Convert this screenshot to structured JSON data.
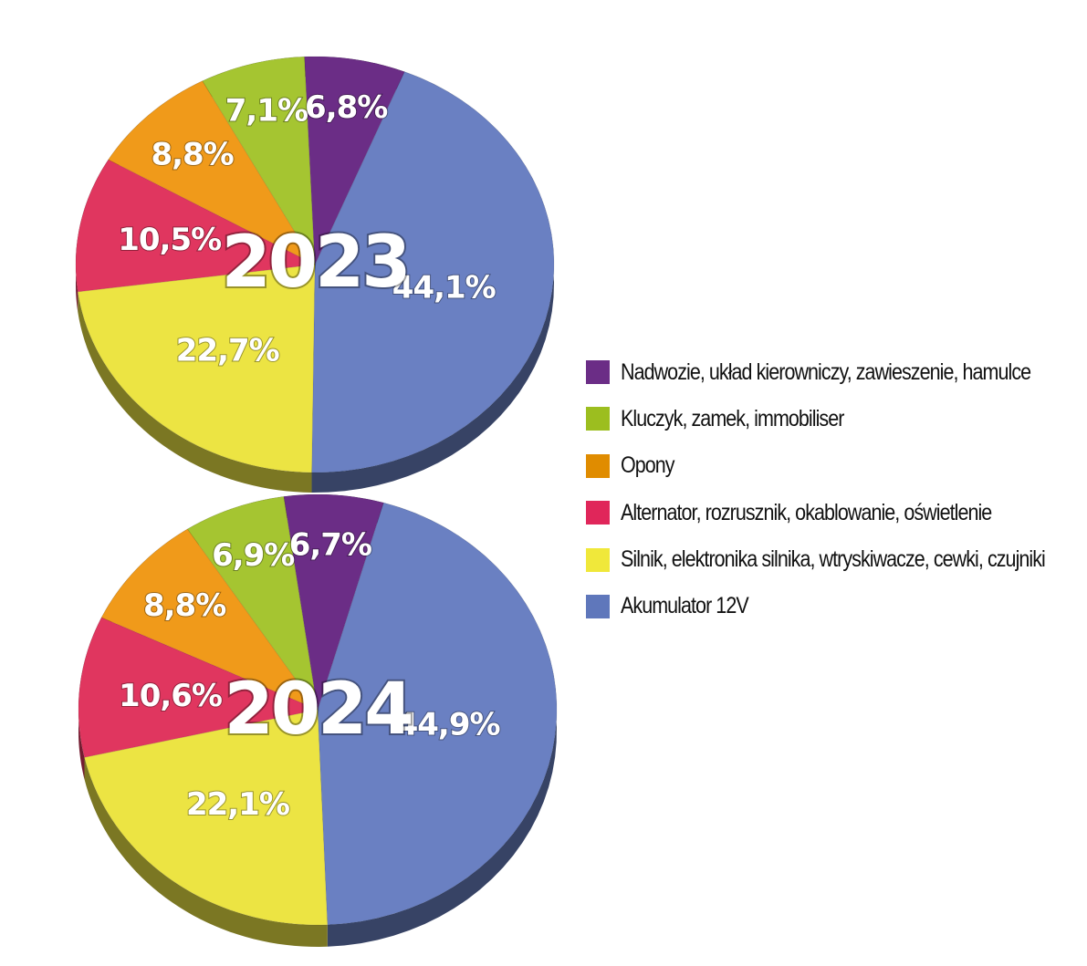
{
  "chart_data": [
    {
      "type": "pie",
      "title": "2023",
      "categories": [
        "Akumulator 12V",
        "Silnik, elektronika silnika, wtryskiwacze, cewki, czujniki",
        "Alternator, rozrusznik, okablowanie, oświetlenie",
        "Opony",
        "Kluczyk, zamek, immobiliser",
        "Nadwozie, układ kierowniczy, zawieszenie, hamulce"
      ],
      "values": [
        44.1,
        22.7,
        10.5,
        8.8,
        7.1,
        6.8
      ],
      "labels": [
        "44,1%",
        "22,7%",
        "10,5%",
        "8,8%",
        "7,1%",
        "6,8%"
      ]
    },
    {
      "type": "pie",
      "title": "2024",
      "categories": [
        "Akumulator 12V",
        "Silnik, elektronika silnika, wtryskiwacze, cewki, czujniki",
        "Alternator, rozrusznik, okablowanie, oświetlenie",
        "Opony",
        "Kluczyk, zamek, immobiliser",
        "Nadwozie, układ kierowniczy, zawieszenie, hamulce"
      ],
      "values": [
        44.9,
        22.1,
        10.6,
        8.8,
        6.9,
        6.7
      ],
      "labels": [
        "44,9%",
        "22,1%",
        "10,6%",
        "8,8%",
        "6,9%",
        "6,7%"
      ]
    }
  ],
  "legend": [
    {
      "label": "Nadwozie, układ kierowniczy, zawieszenie, hamulce",
      "color": "#6b2d86"
    },
    {
      "label": "Kluczyk, zamek, immobiliser",
      "color": "#9cbe1f"
    },
    {
      "label": "Opony",
      "color": "#e08c00"
    },
    {
      "label": "Alternator, rozrusznik, okablowanie, oświetlenie",
      "color": "#e0265a"
    },
    {
      "label": "Silnik, elektronika silnika, wtryskiwacze, cewki, czujniki",
      "color": "#f0e83a"
    },
    {
      "label": "Akumulator 12V",
      "color": "#5f77bb"
    }
  ],
  "colors": {
    "Akumulator 12V": "#6a80c2",
    "Silnik, elektronika silnika, wtryskiwacze, cewki, czujniki": "#ece443",
    "Alternator, rozrusznik, okablowanie, oświetlenie": "#e0365f",
    "Opony": "#f09a1a",
    "Kluczyk, zamek, immobiliser": "#a5c531",
    "Nadwozie, układ kierowniczy, zawieszenie, hamulce": "#6b2d86"
  }
}
